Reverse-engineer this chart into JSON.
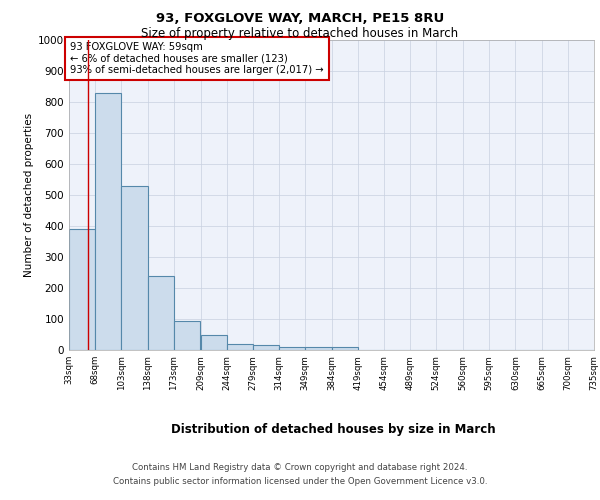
{
  "title1": "93, FOXGLOVE WAY, MARCH, PE15 8RU",
  "title2": "Size of property relative to detached houses in March",
  "xlabel": "Distribution of detached houses by size in March",
  "ylabel": "Number of detached properties",
  "annotation_line1": "93 FOXGLOVE WAY: 59sqm",
  "annotation_line2": "← 6% of detached houses are smaller (123)",
  "annotation_line3": "93% of semi-detached houses are larger (2,017) →",
  "property_size_sqm": 59,
  "bin_edges": [
    33,
    68,
    103,
    138,
    173,
    209,
    244,
    279,
    314,
    349,
    384,
    419,
    454,
    489,
    524,
    560,
    595,
    630,
    665,
    700,
    735
  ],
  "bar_heights": [
    390,
    830,
    530,
    240,
    95,
    50,
    20,
    15,
    10,
    10,
    10,
    0,
    0,
    0,
    0,
    0,
    0,
    0,
    0,
    0
  ],
  "bar_color": "#ccdcec",
  "bar_edge_color": "#5588aa",
  "red_line_color": "#cc0000",
  "annotation_box_color": "#cc0000",
  "grid_color": "#c8d0e0",
  "background_color": "#eef2fa",
  "footer_line1": "Contains HM Land Registry data © Crown copyright and database right 2024.",
  "footer_line2": "Contains public sector information licensed under the Open Government Licence v3.0.",
  "ylim": [
    0,
    1000
  ],
  "yticks": [
    0,
    100,
    200,
    300,
    400,
    500,
    600,
    700,
    800,
    900,
    1000
  ]
}
